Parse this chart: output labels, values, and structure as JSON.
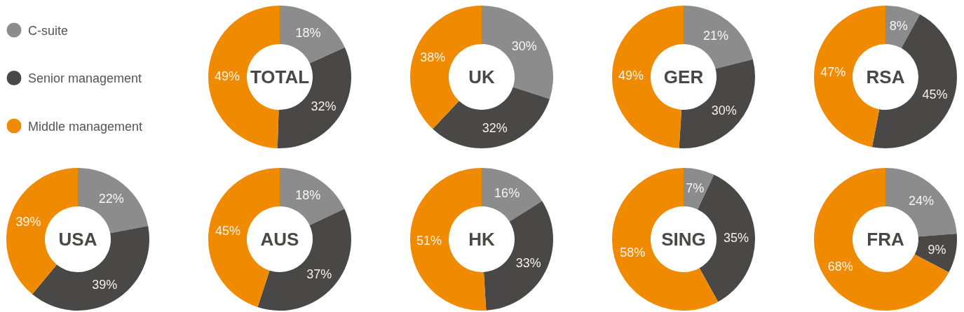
{
  "chart_data": [
    {
      "type": "donut",
      "title": "TOTAL",
      "categories": [
        "C-suite",
        "Senior management",
        "Middle management"
      ],
      "values": [
        18,
        32,
        49
      ],
      "value_labels": [
        "18%",
        "32%",
        "49%"
      ],
      "colors": [
        "#8c8c8c",
        "#4a4847",
        "#f08a00"
      ],
      "legend": "left"
    },
    {
      "type": "donut",
      "title": "UK",
      "categories": [
        null,
        null,
        null
      ],
      "values": [
        30,
        32,
        38
      ],
      "value_labels": [
        "30%",
        "32%",
        "38%"
      ],
      "colors": [
        "#8c8c8c",
        "#4a4847",
        "#f08a00"
      ]
    },
    {
      "type": "donut",
      "title": "GER",
      "categories": [
        null,
        null,
        null
      ],
      "values": [
        21,
        30,
        49
      ],
      "value_labels": [
        "21%",
        "30%",
        "49%"
      ],
      "colors": [
        "#8c8c8c",
        "#4a4847",
        "#f08a00"
      ]
    },
    {
      "type": "donut",
      "title": "RSA",
      "categories": [
        null,
        null,
        null
      ],
      "values": [
        8,
        45,
        47
      ],
      "value_labels": [
        "8%",
        "45%",
        "47%"
      ],
      "colors": [
        "#8c8c8c",
        "#4a4847",
        "#f08a00"
      ]
    },
    {
      "type": "donut",
      "title": "USA",
      "categories": [
        null,
        null,
        null
      ],
      "values": [
        22,
        39,
        39
      ],
      "value_labels": [
        "22%",
        "39%",
        "39%"
      ],
      "colors": [
        "#8c8c8c",
        "#4a4847",
        "#f08a00"
      ]
    },
    {
      "type": "donut",
      "title": "AUS",
      "categories": [
        null,
        null,
        null
      ],
      "values": [
        18,
        37,
        45
      ],
      "value_labels": [
        "18%",
        "37%",
        "45%"
      ],
      "colors": [
        "#8c8c8c",
        "#4a4847",
        "#f08a00"
      ]
    },
    {
      "type": "donut",
      "title": "HK",
      "categories": [
        null,
        null,
        null
      ],
      "values": [
        16,
        33,
        51
      ],
      "value_labels": [
        "16%",
        "33%",
        "51%"
      ],
      "colors": [
        "#8c8c8c",
        "#4a4847",
        "#f08a00"
      ]
    },
    {
      "type": "donut",
      "title": "SING",
      "categories": [
        null,
        null,
        null
      ],
      "values": [
        7,
        35,
        58
      ],
      "value_labels": [
        "7%",
        "35%",
        "58%"
      ],
      "colors": [
        "#8c8c8c",
        "#4a4847",
        "#f08a00"
      ]
    },
    {
      "type": "donut",
      "title": "FRA",
      "categories": [
        null,
        null,
        null
      ],
      "values": [
        24,
        9,
        68
      ],
      "value_labels": [
        "24%",
        "9%",
        "68%"
      ],
      "colors": [
        "#8c8c8c",
        "#4a4847",
        "#f08a00"
      ]
    }
  ]
}
